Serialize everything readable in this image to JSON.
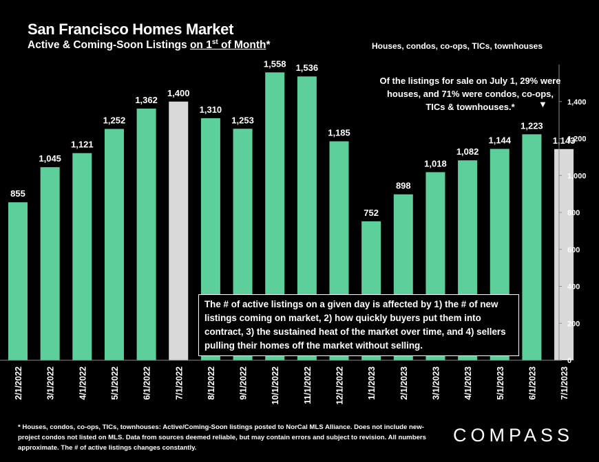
{
  "title": "San Francisco Homes Market",
  "subtitle_prefix": "Active & Coming-Soon Listings ",
  "subtitle_underlined": "on 1",
  "subtitle_sup": "st",
  "subtitle_underlined2": " of Month",
  "subtitle_suffix": "*",
  "tagline": "Houses, condos, co-ops, TICs, townhouses",
  "note_top": "Of the listings for sale on July 1, 29% were houses, and 71% were condos, co-ops, TICs & townhouses.*",
  "note_top_arrow": "▼",
  "note_box": "The # of active listings on a given day is affected by 1) the # of new listings coming on market, 2) how quickly buyers put them into contract, 3) the sustained heat of the market over time, and 4) sellers pulling their homes off the market without selling.",
  "footnote": "* Houses, condos, co-ops, TICs, townhouses: Active/Coming-Soon listings posted to NorCal MLS Alliance. Does not include new-project condos not listed on MLS. Data from sources deemed reliable, but may contain errors and subject to revision. All numbers approximate. The # of active listings changes constantly.",
  "logo": "COMPASS",
  "colors": {
    "bar": "#5ccf9a",
    "highlight": "#d9d9d9",
    "background": "#000000",
    "text": "#ffffff"
  },
  "chart_data": {
    "type": "bar",
    "categories": [
      "2/1/2022",
      "3/1/2022",
      "4/1/2022",
      "5/1/2022",
      "6/1/2022",
      "7/1/2022",
      "8/1/2022",
      "9/1/2022",
      "10/1/2022",
      "11/1/2022",
      "12/1/2022",
      "1/1/2023",
      "2/1/2023",
      "3/1/2023",
      "4/1/2023",
      "5/1/2023",
      "6/1/2023",
      "7/1/2023"
    ],
    "values": [
      855,
      1045,
      1121,
      1252,
      1362,
      1400,
      1310,
      1253,
      1558,
      1536,
      1185,
      752,
      898,
      1018,
      1082,
      1144,
      1223,
      1143
    ],
    "value_labels": [
      "855",
      "1,045",
      "1,121",
      "1,252",
      "1,362",
      "1,400",
      "1,310",
      "1,253",
      "1,558",
      "1,536",
      "1,185",
      "752",
      "898",
      "1,018",
      "1,082",
      "1,144",
      "1,223",
      "1,143"
    ],
    "highlighted": [
      "7/1/2022",
      "7/1/2023"
    ],
    "ylim": [
      0,
      1600
    ],
    "yticks": [
      0,
      200,
      400,
      600,
      800,
      1000,
      1200,
      1400
    ],
    "ytick_labels": [
      "0",
      "200",
      "400",
      "600",
      "800",
      "1,000",
      "1,200",
      "1,400"
    ],
    "axis_position": "right",
    "grid": false,
    "xlabel": "",
    "ylabel": ""
  }
}
